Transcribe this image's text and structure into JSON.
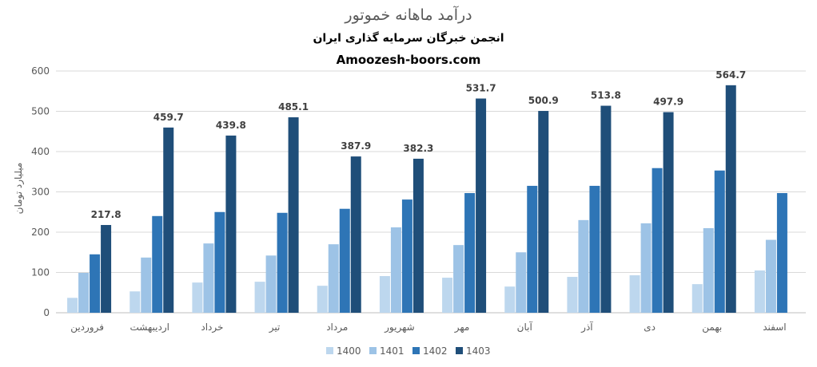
{
  "chart_data": {
    "type": "bar",
    "title": "درآمد ماهانه خموتور",
    "subtitle": "انجمن خبرگان سرمایه گذاری ایران",
    "source": "Amoozesh-boors.com",
    "xlabel": "",
    "ylabel": "میلیارد تومان",
    "ylim": [
      0,
      600
    ],
    "yticks": [
      0,
      100,
      200,
      300,
      400,
      500,
      600
    ],
    "grid": true,
    "legend_position": "bottom",
    "categories": [
      "فروردین",
      "اردیبهشت",
      "خرداد",
      "تیر",
      "مرداد",
      "شهریور",
      "مهر",
      "آبان",
      "آذر",
      "دی",
      "بهمن",
      "اسفند"
    ],
    "series": [
      {
        "name": "1400",
        "color": "#bdd7ee",
        "values": [
          37,
          53,
          75,
          77,
          67,
          91,
          87,
          65,
          89,
          93,
          71,
          105
        ]
      },
      {
        "name": "1401",
        "color": "#9dc3e6",
        "values": [
          99,
          137,
          172,
          142,
          170,
          212,
          168,
          150,
          230,
          222,
          210,
          181
        ]
      },
      {
        "name": "1402",
        "color": "#2e75b6",
        "values": [
          145,
          240,
          250,
          248,
          258,
          281,
          297,
          315,
          315,
          359,
          353,
          297
        ]
      },
      {
        "name": "1403",
        "color": "#1f4e79",
        "values": [
          217.8,
          459.7,
          439.8,
          485.1,
          387.9,
          382.3,
          531.7,
          500.9,
          513.8,
          497.9,
          564.7,
          null
        ]
      }
    ],
    "data_labels": {
      "series": "1403",
      "values": [
        "217.8",
        "459.7",
        "439.8",
        "485.1",
        "387.9",
        "382.3",
        "531.7",
        "500.9",
        "513.8",
        "497.9",
        "564.7",
        ""
      ]
    }
  }
}
